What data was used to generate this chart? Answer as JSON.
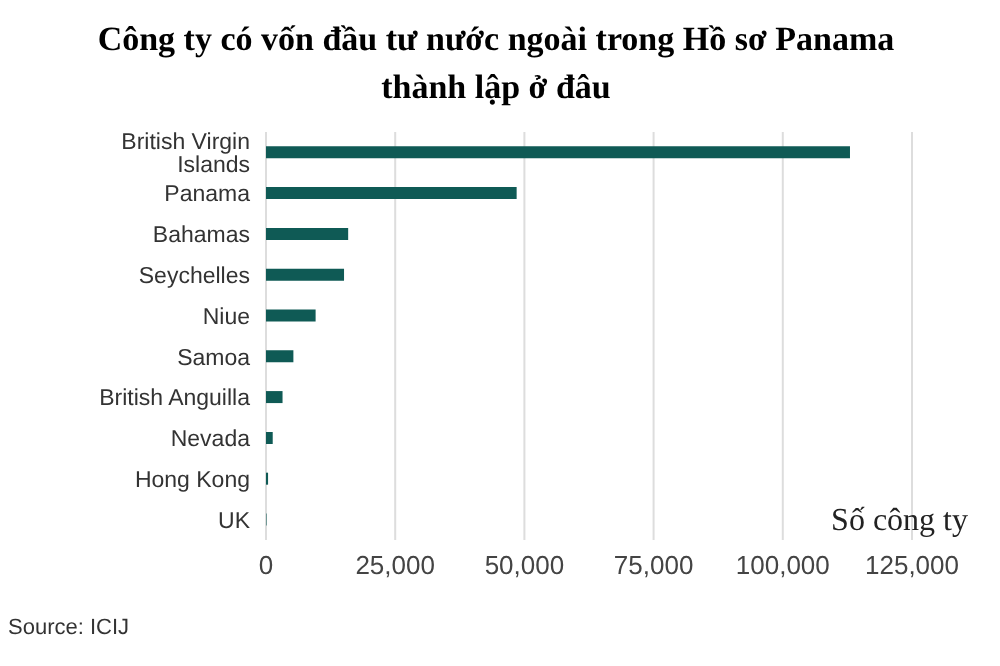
{
  "chart_data": {
    "type": "bar",
    "orientation": "horizontal",
    "title": "Công ty có vốn đầu tư nước ngoài trong Hồ sơ Panama thành lập ở đâu",
    "xlabel": "Số công ty",
    "categories": [
      "British Virgin Islands",
      "Panama",
      "Bahamas",
      "Seychelles",
      "Niue",
      "Samoa",
      "British Anguilla",
      "Nevada",
      "Hong Kong",
      "UK"
    ],
    "values": [
      113000,
      48500,
      15900,
      15100,
      9600,
      5300,
      3200,
      1300,
      400,
      100
    ],
    "color": "#0f5a55",
    "xlim": [
      0,
      125000
    ],
    "xticks": [
      0,
      {
        "value": 25000,
        "label": "25,000"
      },
      {
        "value": 50000,
        "label": "50,000"
      },
      {
        "value": 75000,
        "label": "75,000"
      },
      {
        "value": 100000,
        "label": "100,000"
      },
      {
        "value": 125000,
        "label": "125,000"
      }
    ],
    "grid": "x",
    "annotations": [
      "Source: ICIJ"
    ]
  }
}
